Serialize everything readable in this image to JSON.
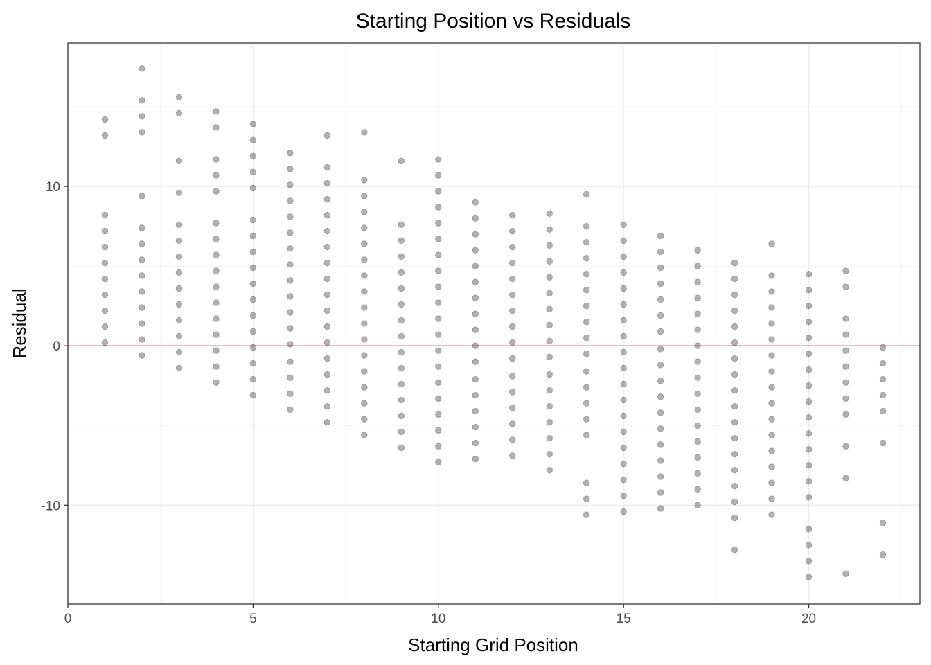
{
  "chart_data": {
    "type": "scatter",
    "title": "Starting Position vs Residuals",
    "xlabel": "Starting Grid Position",
    "ylabel": "Residual",
    "xlim": [
      0,
      23
    ],
    "ylim": [
      -16.2,
      19.0
    ],
    "xticks": [
      0,
      5,
      10,
      15,
      20
    ],
    "xtick_labels": [
      "0",
      "5",
      "10",
      "15",
      "20"
    ],
    "yticks": [
      -10,
      0,
      10
    ],
    "ytick_labels": [
      "-10",
      "0",
      "10"
    ],
    "grid": true,
    "reference_line": {
      "y": 0,
      "color": "#F8766D"
    },
    "point_color": "#000000",
    "point_opacity": 0.3,
    "points_by_x": [
      {
        "x": 1,
        "y": [
          0.2,
          1.2,
          2.2,
          3.2,
          4.2,
          5.2,
          6.2,
          7.2,
          8.2,
          13.2,
          14.2
        ]
      },
      {
        "x": 2,
        "y": [
          -0.6,
          0.4,
          1.4,
          2.4,
          3.4,
          4.4,
          5.4,
          6.4,
          7.4,
          9.4,
          13.4,
          14.4,
          15.4,
          17.4
        ]
      },
      {
        "x": 3,
        "y": [
          -1.4,
          -0.4,
          0.6,
          1.6,
          2.6,
          3.6,
          4.6,
          5.6,
          6.6,
          7.6,
          9.6,
          11.6,
          14.6,
          15.6
        ]
      },
      {
        "x": 4,
        "y": [
          -2.3,
          -1.3,
          -0.3,
          0.7,
          1.7,
          2.7,
          3.7,
          4.7,
          5.7,
          6.7,
          7.7,
          9.7,
          10.7,
          11.7,
          13.7,
          14.7
        ]
      },
      {
        "x": 5,
        "y": [
          -3.1,
          -2.1,
          -1.1,
          -0.1,
          0.9,
          1.9,
          2.9,
          3.9,
          4.9,
          5.9,
          6.9,
          7.9,
          9.9,
          10.9,
          11.9,
          12.9,
          13.9
        ]
      },
      {
        "x": 6,
        "y": [
          -4.0,
          -3.0,
          -2.0,
          -1.0,
          0.1,
          1.1,
          2.1,
          3.1,
          4.1,
          5.1,
          6.1,
          7.1,
          8.1,
          9.1,
          10.1,
          11.1,
          12.1
        ]
      },
      {
        "x": 7,
        "y": [
          -4.8,
          -3.8,
          -2.8,
          -1.8,
          -0.8,
          0.2,
          1.2,
          2.2,
          3.2,
          4.2,
          5.2,
          6.2,
          7.2,
          8.2,
          9.2,
          10.2,
          11.2,
          13.2
        ]
      },
      {
        "x": 8,
        "y": [
          -5.6,
          -4.6,
          -3.6,
          -2.6,
          -1.6,
          -0.6,
          0.4,
          1.4,
          2.4,
          3.4,
          4.4,
          5.4,
          6.4,
          7.4,
          8.4,
          9.4,
          10.4,
          13.4
        ]
      },
      {
        "x": 9,
        "y": [
          -6.4,
          -5.4,
          -4.4,
          -3.4,
          -2.4,
          -1.4,
          -0.4,
          0.6,
          1.6,
          2.6,
          3.6,
          4.6,
          5.6,
          6.6,
          7.6,
          11.6
        ]
      },
      {
        "x": 10,
        "y": [
          -7.3,
          -6.3,
          -5.3,
          -4.3,
          -3.3,
          -2.3,
          -1.3,
          -0.3,
          0.7,
          1.7,
          2.7,
          3.7,
          4.7,
          5.7,
          6.7,
          7.7,
          8.7,
          9.7,
          10.7,
          11.7
        ]
      },
      {
        "x": 11,
        "y": [
          -7.1,
          -6.1,
          -5.1,
          -4.1,
          -3.1,
          -2.1,
          -1.0,
          0.0,
          1.0,
          2.0,
          3.0,
          4.0,
          5.0,
          6.0,
          7.0,
          8.0,
          9.0
        ]
      },
      {
        "x": 12,
        "y": [
          -6.9,
          -5.9,
          -4.9,
          -3.9,
          -2.9,
          -1.9,
          -0.8,
          0.2,
          1.2,
          2.2,
          3.2,
          4.2,
          5.2,
          6.2,
          7.2,
          8.2
        ]
      },
      {
        "x": 13,
        "y": [
          -7.8,
          -6.8,
          -5.8,
          -4.8,
          -3.8,
          -2.8,
          -1.8,
          -0.7,
          0.3,
          1.3,
          2.3,
          3.3,
          4.3,
          5.3,
          6.3,
          7.3,
          8.3
        ]
      },
      {
        "x": 14,
        "y": [
          -10.6,
          -9.6,
          -8.6,
          -5.6,
          -4.6,
          -3.6,
          -2.6,
          -1.6,
          -0.5,
          0.5,
          1.5,
          2.5,
          3.5,
          4.5,
          5.5,
          6.5,
          7.5,
          9.5
        ]
      },
      {
        "x": 15,
        "y": [
          -10.4,
          -9.4,
          -8.4,
          -7.4,
          -6.4,
          -5.4,
          -4.4,
          -3.4,
          -2.4,
          -1.4,
          -0.4,
          0.6,
          1.6,
          2.6,
          3.6,
          4.6,
          5.6,
          6.6,
          7.6
        ]
      },
      {
        "x": 16,
        "y": [
          -10.2,
          -9.2,
          -8.2,
          -7.2,
          -6.2,
          -5.2,
          -4.2,
          -3.2,
          -2.2,
          -1.2,
          -0.2,
          0.9,
          1.9,
          2.9,
          3.9,
          4.9,
          5.9,
          6.9
        ]
      },
      {
        "x": 17,
        "y": [
          -10.0,
          -9.0,
          -8.0,
          -7.0,
          -6.0,
          -5.0,
          -4.0,
          -3.0,
          -2.0,
          -1.0,
          0.0,
          1.0,
          2.0,
          3.0,
          4.0,
          5.0,
          6.0
        ]
      },
      {
        "x": 18,
        "y": [
          -12.8,
          -10.8,
          -9.8,
          -8.8,
          -7.8,
          -6.8,
          -5.8,
          -4.8,
          -3.8,
          -2.8,
          -1.8,
          -0.8,
          0.2,
          1.2,
          2.2,
          3.2,
          4.2,
          5.2
        ]
      },
      {
        "x": 19,
        "y": [
          -10.6,
          -9.6,
          -8.6,
          -7.6,
          -6.6,
          -5.6,
          -4.6,
          -3.6,
          -2.6,
          -1.6,
          -0.6,
          0.4,
          1.4,
          2.4,
          3.4,
          4.4,
          6.4
        ]
      },
      {
        "x": 20,
        "y": [
          -14.5,
          -13.5,
          -12.5,
          -11.5,
          -9.5,
          -8.5,
          -7.5,
          -6.5,
          -5.5,
          -4.5,
          -3.5,
          -2.5,
          -1.5,
          -0.5,
          0.5,
          1.5,
          2.5,
          3.5,
          4.5
        ]
      },
      {
        "x": 21,
        "y": [
          -14.3,
          -8.3,
          -6.3,
          -4.3,
          -3.3,
          -2.3,
          -1.3,
          -0.3,
          0.7,
          1.7,
          3.7,
          4.7
        ]
      },
      {
        "x": 22,
        "y": [
          -13.1,
          -11.1,
          -6.1,
          -4.1,
          -3.1,
          -2.1,
          -1.1,
          -0.1
        ]
      }
    ]
  }
}
